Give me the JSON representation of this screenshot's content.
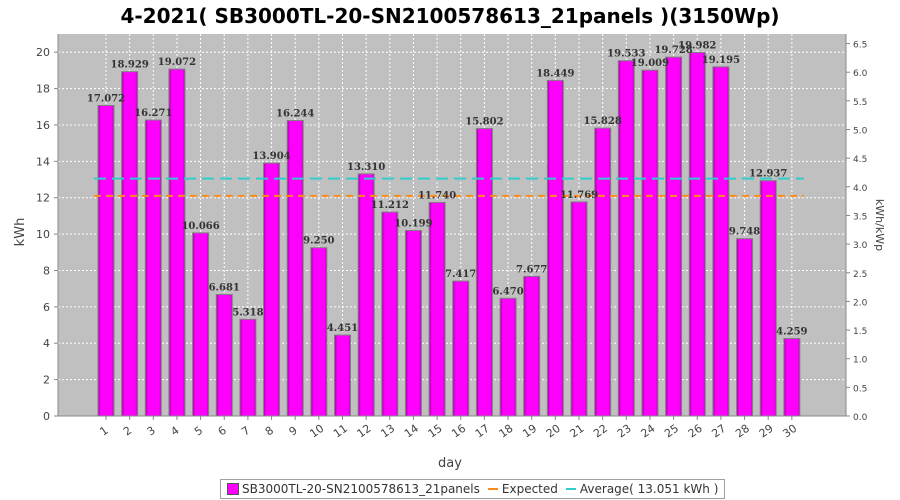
{
  "chart_data": {
    "type": "bar",
    "title": "4-2021( SB3000TL-20-SN2100578613_21panels )(3150Wp)",
    "xlabel": "day",
    "ylabel": "kWh",
    "y2label": "kWh/kWp",
    "ylim": [
      0,
      21
    ],
    "y2lim": [
      0,
      6.667
    ],
    "yticks": [
      "0",
      "2",
      "4",
      "6",
      "8",
      "10",
      "12",
      "14",
      "16",
      "18",
      "20"
    ],
    "y2ticks": [
      "0.0",
      "0.5",
      "1.0",
      "1.5",
      "2.0",
      "2.5",
      "3.0",
      "3.5",
      "4.0",
      "4.5",
      "5.0",
      "5.5",
      "6.0",
      "6.5"
    ],
    "grid": true,
    "categories": [
      "1",
      "2",
      "3",
      "4",
      "5",
      "6",
      "7",
      "8",
      "9",
      "10",
      "11",
      "12",
      "13",
      "14",
      "15",
      "16",
      "17",
      "18",
      "19",
      "20",
      "21",
      "22",
      "23",
      "24",
      "25",
      "26",
      "27",
      "28",
      "29",
      "30"
    ],
    "series": [
      {
        "name": "SB3000TL-20-SN2100578613_21panels",
        "color": "#ff00ff",
        "values": [
          17.072,
          18.929,
          16.271,
          19.072,
          10.066,
          6.681,
          5.318,
          13.904,
          16.244,
          9.25,
          4.451,
          13.31,
          11.212,
          10.199,
          11.74,
          7.417,
          15.802,
          6.47,
          7.677,
          18.449,
          11.769,
          15.828,
          19.533,
          19.009,
          19.728,
          19.982,
          19.195,
          9.748,
          12.937,
          4.259
        ],
        "labels": [
          "17.072",
          "18.929",
          "16.271",
          "19.072",
          "10.066",
          "6.681",
          "5.318",
          "13.904",
          "16.244",
          "9.250",
          "4.451",
          "13.310",
          "11.212",
          "10.199",
          "11.740",
          "7.417",
          "15.802",
          "6.470",
          "7.677",
          "18.449",
          "11.769",
          "15.828",
          "19.533",
          "19.009",
          "19.728",
          "19.982",
          "19.195",
          "9.748",
          "12.937",
          "4.259"
        ]
      }
    ],
    "expected": {
      "name": "Expected",
      "value": 12.1,
      "color": "#ff8c1a"
    },
    "average": {
      "name": "Average( 13.051 kWh )",
      "value": 13.051,
      "color": "#33cccc"
    },
    "legend_position": "bottom"
  }
}
